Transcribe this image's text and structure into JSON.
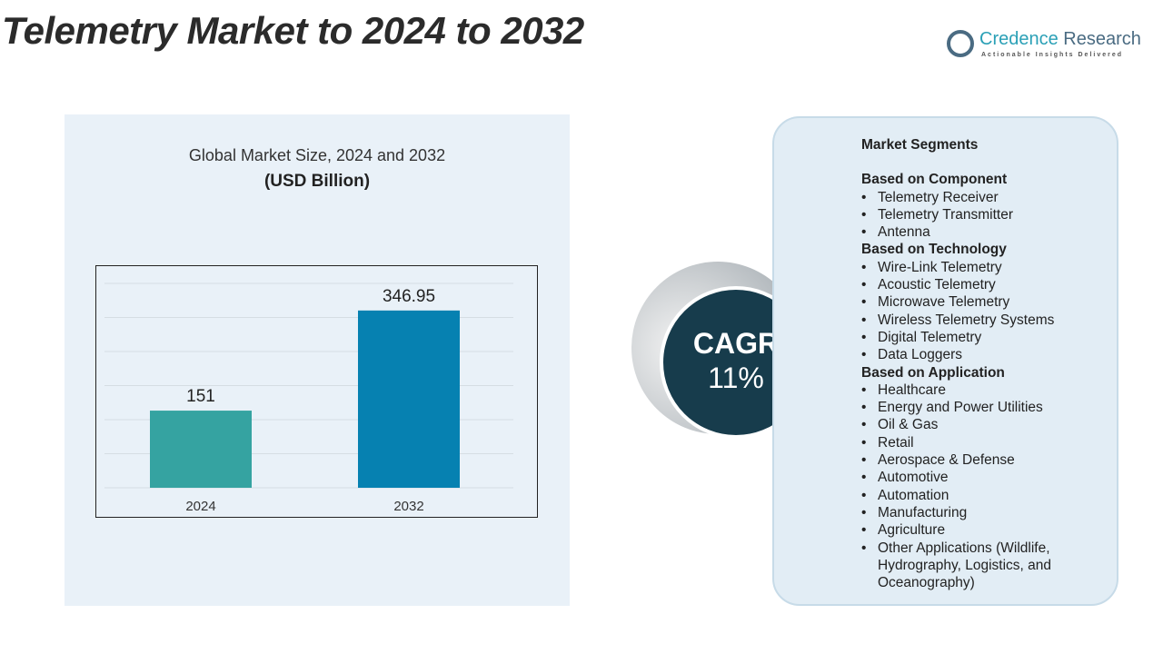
{
  "title": "Telemetry Market to 2024 to 2032",
  "logo": {
    "name_1": "Credence",
    "name_2": " Research",
    "tagline": "Actionable Insights Delivered"
  },
  "chart_data": {
    "type": "bar",
    "title": "Global Market Size, 2024 and 2032",
    "subtitle": "(USD Billion)",
    "categories": [
      "2024",
      "2032"
    ],
    "values": [
      151,
      346.95
    ],
    "value_labels": [
      "151",
      "346.95"
    ],
    "colors": [
      "#35a3a1",
      "#0681b1"
    ],
    "ylim": [
      0,
      400
    ],
    "grid": true
  },
  "cagr": {
    "label": "CAGR",
    "value": "11%"
  },
  "segments": {
    "heading": "Market Segments",
    "groups": [
      {
        "title": "Based on Component",
        "items": [
          "Telemetry Receiver",
          "Telemetry Transmitter",
          "Antenna"
        ]
      },
      {
        "title": "Based on Technology",
        "items": [
          "Wire-Link Telemetry",
          "Acoustic Telemetry",
          "Microwave Telemetry",
          "Wireless Telemetry Systems",
          "Digital Telemetry",
          "Data Loggers"
        ]
      },
      {
        "title": "Based on Application",
        "items": [
          "Healthcare",
          "Energy and Power Utilities",
          "Oil & Gas",
          "Retail",
          "Aerospace & Defense",
          "Automotive",
          "Automation",
          "Manufacturing",
          "Agriculture",
          "Other Applications (Wildlife, Hydrography, Logistics, and Oceanography)"
        ]
      }
    ]
  }
}
